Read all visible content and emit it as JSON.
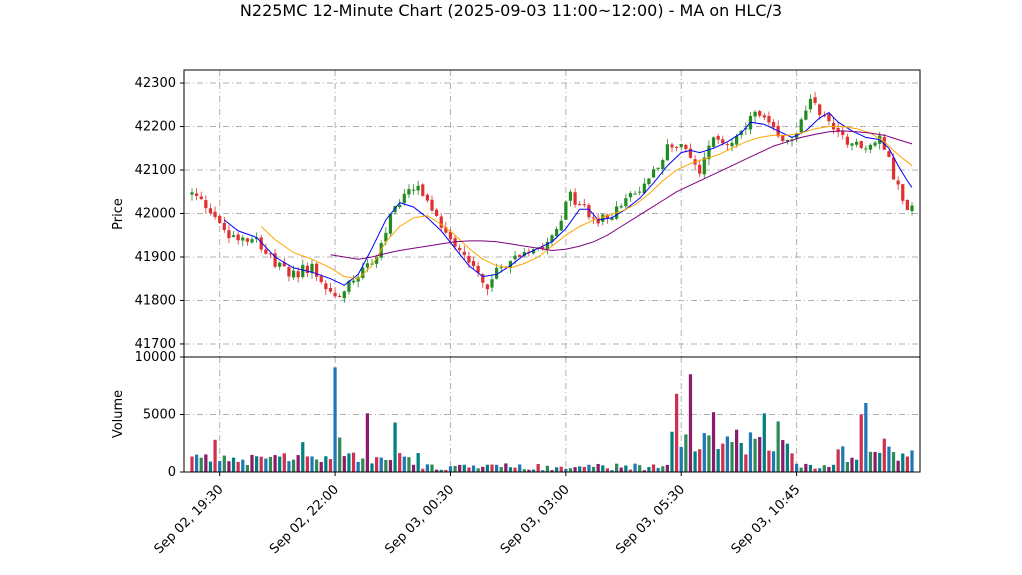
{
  "chart_data": {
    "type": "candlestick",
    "title": "N225MC 12-Minute Chart (2025-09-03 11:00~12:00) - MA on HLC/3",
    "price_panel": {
      "ylabel": "Price",
      "ylim": [
        41670,
        42330
      ],
      "yticks": [
        41700,
        41800,
        41900,
        42000,
        42100,
        42200,
        42300
      ],
      "grid": true
    },
    "volume_panel": {
      "ylabel": "Volume",
      "ylim": [
        0,
        10000
      ],
      "yticks": [
        0,
        5000,
        10000
      ],
      "grid": true
    },
    "x_ticks": [
      {
        "label": "Sep 02, 19:30",
        "index": 6
      },
      {
        "label": "Sep 02, 22:00",
        "index": 31
      },
      {
        "label": "Sep 03, 00:30",
        "index": 56
      },
      {
        "label": "Sep 03, 03:00",
        "index": 81
      },
      {
        "label": "Sep 03, 05:30",
        "index": 106
      },
      {
        "label": "Sep 03, 10:45",
        "index": 131
      }
    ],
    "bar_count": 157,
    "close_anchors": [
      [
        0,
        42045
      ],
      [
        4,
        42010
      ],
      [
        8,
        41950
      ],
      [
        14,
        41945
      ],
      [
        18,
        41880
      ],
      [
        22,
        41860
      ],
      [
        26,
        41880
      ],
      [
        29,
        41830
      ],
      [
        31,
        41810
      ],
      [
        34,
        41840
      ],
      [
        37,
        41870
      ],
      [
        40,
        41900
      ],
      [
        43,
        41990
      ],
      [
        46,
        42040
      ],
      [
        49,
        42060
      ],
      [
        52,
        42000
      ],
      [
        55,
        41960
      ],
      [
        58,
        41920
      ],
      [
        61,
        41880
      ],
      [
        64,
        41830
      ],
      [
        67,
        41880
      ],
      [
        70,
        41900
      ],
      [
        73,
        41920
      ],
      [
        76,
        41930
      ],
      [
        79,
        41970
      ],
      [
        82,
        42040
      ],
      [
        85,
        42010
      ],
      [
        88,
        41980
      ],
      [
        91,
        42000
      ],
      [
        94,
        42030
      ],
      [
        97,
        42050
      ],
      [
        100,
        42100
      ],
      [
        103,
        42150
      ],
      [
        106,
        42160
      ],
      [
        108,
        42120
      ],
      [
        110,
        42090
      ],
      [
        113,
        42180
      ],
      [
        116,
        42160
      ],
      [
        119,
        42180
      ],
      [
        122,
        42230
      ],
      [
        125,
        42200
      ],
      [
        128,
        42160
      ],
      [
        131,
        42180
      ],
      [
        134,
        42270
      ],
      [
        137,
        42220
      ],
      [
        140,
        42190
      ],
      [
        143,
        42160
      ],
      [
        146,
        42150
      ],
      [
        149,
        42170
      ],
      [
        151,
        42120
      ],
      [
        153,
        42060
      ],
      [
        155,
        42000
      ],
      [
        156,
        42010
      ]
    ],
    "volume_spikes": [
      [
        5,
        2800
      ],
      [
        24,
        2600
      ],
      [
        31,
        9100
      ],
      [
        32,
        3000
      ],
      [
        38,
        5100
      ],
      [
        44,
        4300
      ],
      [
        105,
        6800
      ],
      [
        108,
        8500
      ],
      [
        113,
        5200
      ],
      [
        124,
        5100
      ],
      [
        127,
        4400
      ],
      [
        145,
        5000
      ],
      [
        146,
        6000
      ],
      [
        150,
        2900
      ]
    ],
    "moving_averages": [
      {
        "color": "#0000ff",
        "points": [
          [
            7,
            41985
          ],
          [
            10,
            41960
          ],
          [
            14,
            41945
          ],
          [
            18,
            41900
          ],
          [
            22,
            41875
          ],
          [
            26,
            41865
          ],
          [
            30,
            41850
          ],
          [
            33,
            41835
          ],
          [
            36,
            41860
          ],
          [
            39,
            41920
          ],
          [
            42,
            41985
          ],
          [
            45,
            42025
          ],
          [
            48,
            42015
          ],
          [
            51,
            41990
          ],
          [
            54,
            41960
          ],
          [
            57,
            41920
          ],
          [
            60,
            41880
          ],
          [
            63,
            41855
          ],
          [
            66,
            41860
          ],
          [
            69,
            41880
          ],
          [
            72,
            41905
          ],
          [
            75,
            41920
          ],
          [
            78,
            41935
          ],
          [
            81,
            41965
          ],
          [
            84,
            42010
          ],
          [
            86,
            42010
          ],
          [
            88,
            41985
          ],
          [
            91,
            41990
          ],
          [
            94,
            42010
          ],
          [
            97,
            42035
          ],
          [
            100,
            42070
          ],
          [
            103,
            42110
          ],
          [
            106,
            42140
          ],
          [
            108,
            42145
          ],
          [
            110,
            42140
          ],
          [
            113,
            42150
          ],
          [
            116,
            42165
          ],
          [
            119,
            42185
          ],
          [
            121,
            42210
          ],
          [
            124,
            42205
          ],
          [
            127,
            42190
          ],
          [
            130,
            42175
          ],
          [
            133,
            42190
          ],
          [
            136,
            42220
          ],
          [
            138,
            42232
          ],
          [
            140,
            42210
          ],
          [
            143,
            42190
          ],
          [
            146,
            42175
          ],
          [
            149,
            42170
          ],
          [
            151,
            42150
          ],
          [
            153,
            42110
          ],
          [
            155,
            42075
          ],
          [
            156,
            42060
          ]
        ]
      },
      {
        "color": "#ffa500",
        "points": [
          [
            15,
            41970
          ],
          [
            18,
            41940
          ],
          [
            22,
            41910
          ],
          [
            26,
            41895
          ],
          [
            30,
            41875
          ],
          [
            33,
            41855
          ],
          [
            36,
            41850
          ],
          [
            39,
            41880
          ],
          [
            42,
            41935
          ],
          [
            45,
            41970
          ],
          [
            48,
            41990
          ],
          [
            51,
            41995
          ],
          [
            54,
            41975
          ],
          [
            57,
            41950
          ],
          [
            60,
            41920
          ],
          [
            63,
            41895
          ],
          [
            66,
            41880
          ],
          [
            69,
            41875
          ],
          [
            72,
            41885
          ],
          [
            75,
            41900
          ],
          [
            78,
            41925
          ],
          [
            81,
            41950
          ],
          [
            84,
            41970
          ],
          [
            87,
            41985
          ],
          [
            90,
            41995
          ],
          [
            93,
            42005
          ],
          [
            96,
            42020
          ],
          [
            99,
            42045
          ],
          [
            102,
            42075
          ],
          [
            105,
            42100
          ],
          [
            108,
            42115
          ],
          [
            111,
            42125
          ],
          [
            114,
            42135
          ],
          [
            117,
            42150
          ],
          [
            120,
            42165
          ],
          [
            123,
            42175
          ],
          [
            126,
            42180
          ],
          [
            129,
            42180
          ],
          [
            132,
            42185
          ],
          [
            135,
            42195
          ],
          [
            138,
            42200
          ],
          [
            141,
            42200
          ],
          [
            144,
            42195
          ],
          [
            147,
            42185
          ],
          [
            150,
            42165
          ],
          [
            153,
            42135
          ],
          [
            156,
            42110
          ]
        ]
      },
      {
        "color": "#800080",
        "points": [
          [
            30,
            41905
          ],
          [
            33,
            41900
          ],
          [
            36,
            41895
          ],
          [
            39,
            41900
          ],
          [
            42,
            41908
          ],
          [
            45,
            41915
          ],
          [
            48,
            41920
          ],
          [
            51,
            41925
          ],
          [
            54,
            41930
          ],
          [
            57,
            41935
          ],
          [
            60,
            41937
          ],
          [
            63,
            41937
          ],
          [
            66,
            41935
          ],
          [
            69,
            41930
          ],
          [
            72,
            41925
          ],
          [
            75,
            41920
          ],
          [
            78,
            41915
          ],
          [
            81,
            41918
          ],
          [
            84,
            41925
          ],
          [
            87,
            41935
          ],
          [
            90,
            41950
          ],
          [
            93,
            41970
          ],
          [
            96,
            41990
          ],
          [
            99,
            42010
          ],
          [
            102,
            42030
          ],
          [
            105,
            42050
          ],
          [
            108,
            42065
          ],
          [
            111,
            42080
          ],
          [
            114,
            42095
          ],
          [
            117,
            42110
          ],
          [
            120,
            42125
          ],
          [
            123,
            42140
          ],
          [
            126,
            42155
          ],
          [
            129,
            42165
          ],
          [
            132,
            42175
          ],
          [
            135,
            42182
          ],
          [
            138,
            42188
          ],
          [
            141,
            42190
          ],
          [
            144,
            42188
          ],
          [
            147,
            42185
          ],
          [
            150,
            42180
          ],
          [
            153,
            42170
          ],
          [
            156,
            42160
          ]
        ]
      }
    ],
    "colors": {
      "up": "#228b22",
      "down": "#e03030",
      "volume_palette": [
        "#d03050",
        "#1f77b4",
        "#2e8b57",
        "#8b1a6b",
        "#008080"
      ]
    }
  }
}
